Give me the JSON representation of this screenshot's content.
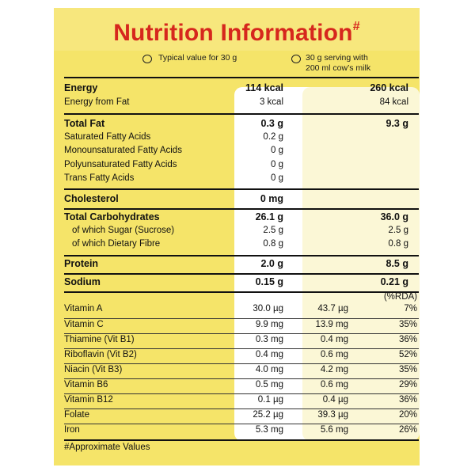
{
  "title": "Nutrition Information",
  "title_mark": "#",
  "legend": {
    "col1": "Typical value for 30 g",
    "col2_line1": "30 g serving with",
    "col2_line2": "200 ml cow’s milk"
  },
  "rows": {
    "energy": {
      "label": "Energy",
      "v1": "114 kcal",
      "v2": "260 kcal"
    },
    "energy_fat": {
      "label": "Energy from Fat",
      "v1": "3 kcal",
      "v2": "84 kcal"
    },
    "total_fat": {
      "label": "Total Fat",
      "v1": "0.3 g",
      "v2": "9.3 g"
    },
    "sat_fat": {
      "label": "Saturated Fatty Acids",
      "v1": "0.2 g"
    },
    "mono_fat": {
      "label": "Monounsaturated Fatty Acids",
      "v1": "0 g"
    },
    "poly_fat": {
      "label": "Polyunsaturated Fatty Acids",
      "v1": "0 g"
    },
    "trans_fat": {
      "label": "Trans Fatty Acids",
      "v1": "0 g"
    },
    "cholesterol": {
      "label": "Cholesterol",
      "v1": "0 mg"
    },
    "carbs": {
      "label": "Total Carbohydrates",
      "v1": "26.1 g",
      "v2": "36.0 g"
    },
    "sugar": {
      "label": "of which Sugar (Sucrose)",
      "v1": "2.5 g",
      "v2": "2.5 g"
    },
    "fibre": {
      "label": "of which Dietary Fibre",
      "v1": "0.8 g",
      "v2": "0.8 g"
    },
    "protein": {
      "label": "Protein",
      "v1": "2.0 g",
      "v2": "8.5 g"
    },
    "sodium": {
      "label": "Sodium",
      "v1": "0.15 g",
      "v2": "0.21 g"
    }
  },
  "rda_header": "(%RDA)",
  "vitamins": {
    "vit_a": {
      "label": "Vitamin A",
      "v1": "30.0 µg",
      "v2": "43.7 µg",
      "pct": "7%"
    },
    "vit_c": {
      "label": "Vitamin C",
      "v1": "9.9 mg",
      "v2": "13.9 mg",
      "pct": "35%"
    },
    "b1": {
      "label": "Thiamine (Vit B1)",
      "v1": "0.3 mg",
      "v2": "0.4 mg",
      "pct": "36%"
    },
    "b2": {
      "label": "Riboflavin (Vit B2)",
      "v1": "0.4 mg",
      "v2": "0.6 mg",
      "pct": "52%"
    },
    "b3": {
      "label": "Niacin (Vit B3)",
      "v1": "4.0 mg",
      "v2": "4.2 mg",
      "pct": "35%"
    },
    "b6": {
      "label": "Vitamin B6",
      "v1": "0.5 mg",
      "v2": "0.6 mg",
      "pct": "29%"
    },
    "b12": {
      "label": "Vitamin B12",
      "v1": "0.1 µg",
      "v2": "0.4 µg",
      "pct": "36%"
    },
    "folate": {
      "label": "Folate",
      "v1": "25.2 µg",
      "v2": "39.3 µg",
      "pct": "20%"
    },
    "iron": {
      "label": "Iron",
      "v1": "5.3 mg",
      "v2": "5.6 mg",
      "pct": "26%"
    }
  },
  "footnote": "#Approximate Values",
  "colors": {
    "title": "#d6271d",
    "panel": "#f5e469",
    "column1": "#ffffff",
    "column2": "#fbf7d6"
  }
}
